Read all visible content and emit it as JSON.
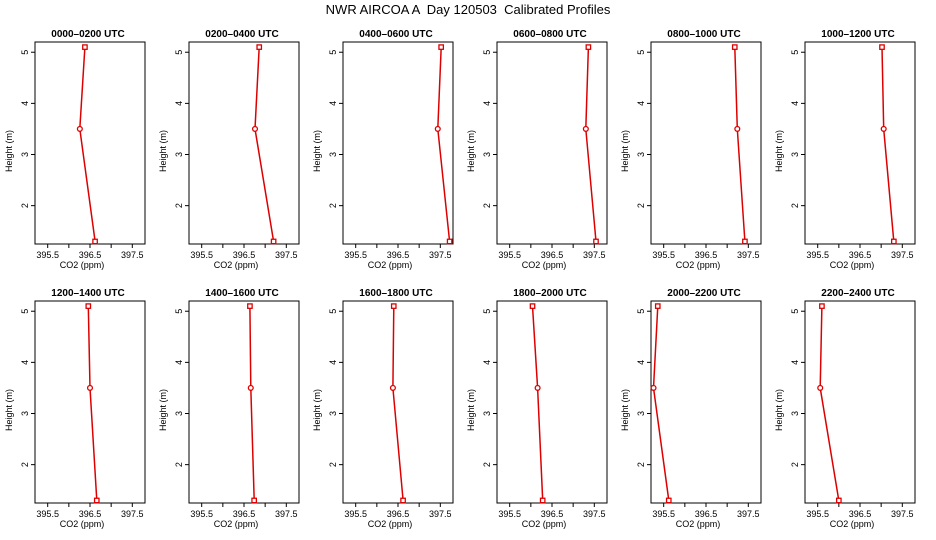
{
  "title": "NWR AIRCOA A  Day 120503  Calibrated Profiles",
  "colors": {
    "profile": "#dd0000",
    "axis": "#000000"
  },
  "chart_data": {
    "type": "line",
    "title": "NWR AIRCOA A  Day 120503  Calibrated Profiles",
    "xlabel": "CO2 (ppm)",
    "ylabel": "Height (m)",
    "xlim": [
      395.2,
      397.8
    ],
    "ylim": [
      1.25,
      5.2
    ],
    "x_ticks": [
      395.5,
      396,
      396.5,
      397,
      397.5
    ],
    "x_tick_labels": [
      "395.5",
      "",
      "396.5",
      "",
      "397.5"
    ],
    "y_ticks": [
      2,
      3,
      4,
      5
    ],
    "y_tick_labels": [
      "2",
      "3",
      "4",
      "5"
    ],
    "grid": false,
    "heights": [
      1.3,
      3.5,
      5.1
    ],
    "panels": [
      {
        "name": "0000–0200 UTC",
        "x": [
          396.62,
          396.26,
          396.38
        ]
      },
      {
        "name": "0200–0400 UTC",
        "x": [
          397.2,
          396.76,
          396.86
        ]
      },
      {
        "name": "0400–0600 UTC",
        "x": [
          397.72,
          397.44,
          397.52
        ]
      },
      {
        "name": "0600–0800 UTC",
        "x": [
          397.54,
          397.3,
          397.36
        ]
      },
      {
        "name": "0800–1000 UTC",
        "x": [
          397.42,
          397.24,
          397.18
        ]
      },
      {
        "name": "1000–1200 UTC",
        "x": [
          397.3,
          397.06,
          397.02
        ]
      },
      {
        "name": "1200–1400 UTC",
        "x": [
          396.66,
          396.5,
          396.46
        ]
      },
      {
        "name": "1400–1600 UTC",
        "x": [
          396.74,
          396.66,
          396.64
        ]
      },
      {
        "name": "1600–1800 UTC",
        "x": [
          396.62,
          396.38,
          396.4
        ]
      },
      {
        "name": "1800–2000 UTC",
        "x": [
          396.28,
          396.16,
          396.04
        ]
      },
      {
        "name": "2000–2200 UTC",
        "x": [
          395.62,
          395.26,
          395.36
        ]
      },
      {
        "name": "2200–2400 UTC",
        "x": [
          396,
          395.56,
          395.6
        ]
      }
    ]
  }
}
